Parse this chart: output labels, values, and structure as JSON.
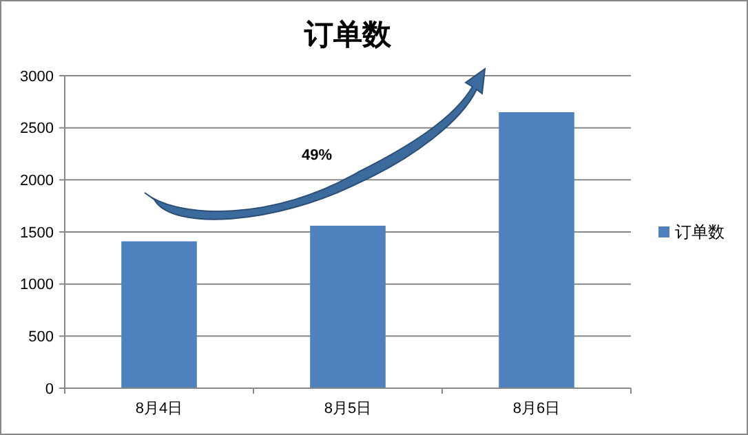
{
  "chart_data": {
    "type": "bar",
    "title": "订单数",
    "categories": [
      "8月4日",
      "8月5日",
      "8月6日"
    ],
    "series": [
      {
        "name": "订单数",
        "color": "#4f81bd",
        "values": [
          1410,
          1560,
          2650
        ]
      }
    ],
    "ylim": [
      0,
      3000
    ],
    "yticks": [
      0,
      500,
      1000,
      1500,
      2000,
      2500,
      3000
    ],
    "grid": "y",
    "legend": "right",
    "annotations": [
      "49%"
    ]
  }
}
